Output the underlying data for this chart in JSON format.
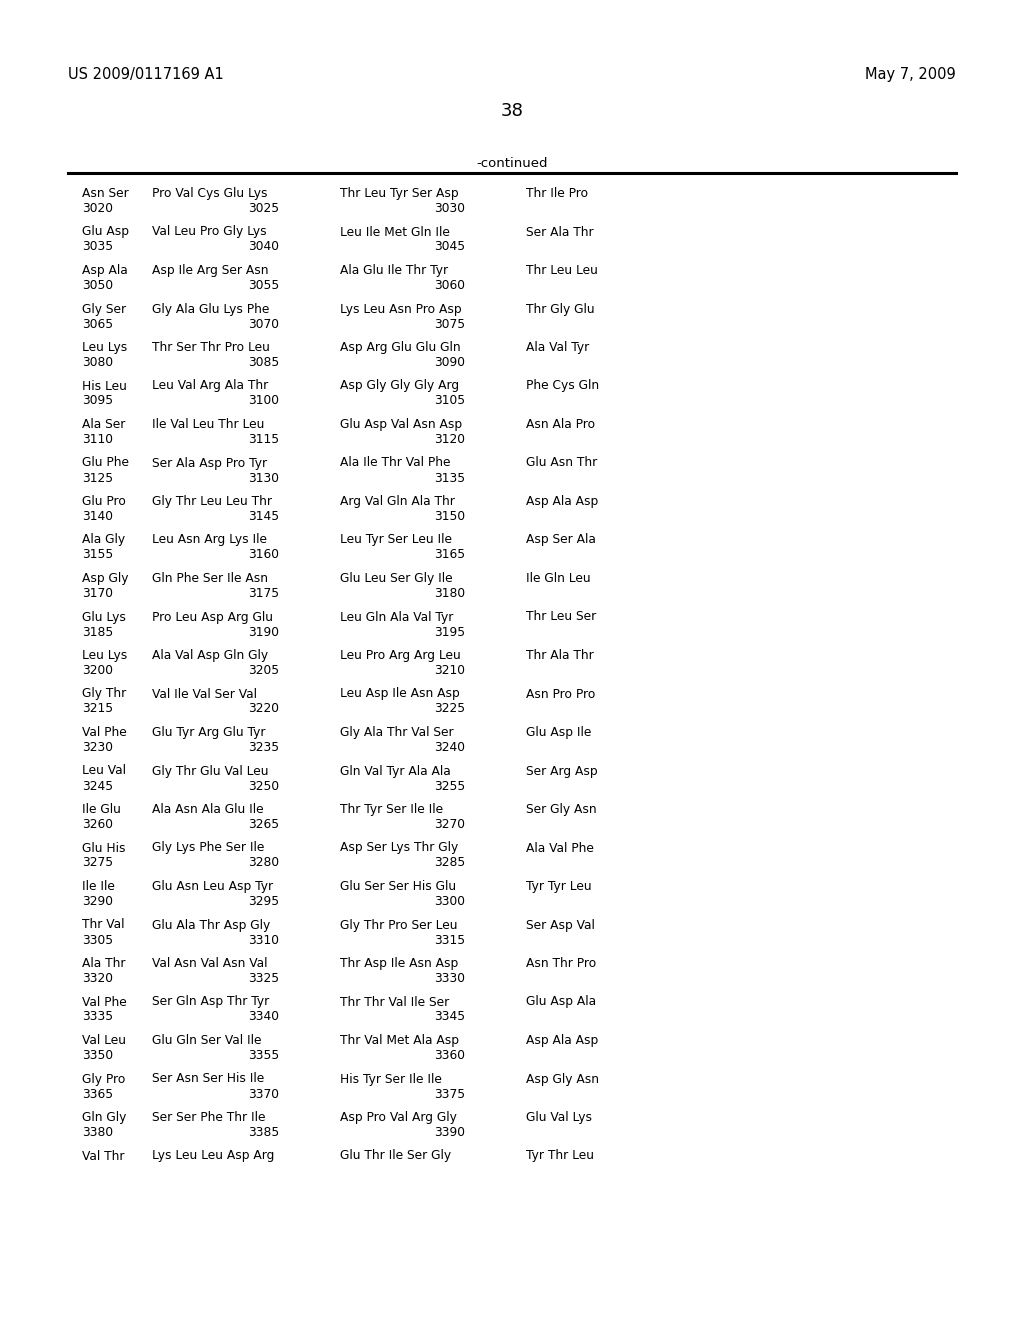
{
  "header_left": "US 2009/0117169 A1",
  "header_right": "May 7, 2009",
  "page_number": "38",
  "continued_label": "-continued",
  "background_color": "#ffffff",
  "text_color": "#000000",
  "sequence_lines": [
    [
      "Asn Ser",
      "Pro Val Cys Glu Lys",
      "Thr Leu Tyr Ser Asp",
      "Thr Ile Pro",
      "3020",
      "3025",
      "3030"
    ],
    [
      "Glu Asp",
      "Val Leu Pro Gly Lys",
      "Leu Ile Met Gln Ile",
      "Ser Ala Thr",
      "3035",
      "3040",
      "3045"
    ],
    [
      "Asp Ala",
      "Asp Ile Arg Ser Asn",
      "Ala Glu Ile Thr Tyr",
      "Thr Leu Leu",
      "3050",
      "3055",
      "3060"
    ],
    [
      "Gly Ser",
      "Gly Ala Glu Lys Phe",
      "Lys Leu Asn Pro Asp",
      "Thr Gly Glu",
      "3065",
      "3070",
      "3075"
    ],
    [
      "Leu Lys",
      "Thr Ser Thr Pro Leu",
      "Asp Arg Glu Glu Gln",
      "Ala Val Tyr",
      "3080",
      "3085",
      "3090"
    ],
    [
      "His Leu",
      "Leu Val Arg Ala Thr",
      "Asp Gly Gly Gly Arg",
      "Phe Cys Gln",
      "3095",
      "3100",
      "3105"
    ],
    [
      "Ala Ser",
      "Ile Val Leu Thr Leu",
      "Glu Asp Val Asn Asp",
      "Asn Ala Pro",
      "3110",
      "3115",
      "3120"
    ],
    [
      "Glu Phe",
      "Ser Ala Asp Pro Tyr",
      "Ala Ile Thr Val Phe",
      "Glu Asn Thr",
      "3125",
      "3130",
      "3135"
    ],
    [
      "Glu Pro",
      "Gly Thr Leu Leu Thr",
      "Arg Val Gln Ala Thr",
      "Asp Ala Asp",
      "3140",
      "3145",
      "3150"
    ],
    [
      "Ala Gly",
      "Leu Asn Arg Lys Ile",
      "Leu Tyr Ser Leu Ile",
      "Asp Ser Ala",
      "3155",
      "3160",
      "3165"
    ],
    [
      "Asp Gly",
      "Gln Phe Ser Ile Asn",
      "Glu Leu Ser Gly Ile",
      "Ile Gln Leu",
      "3170",
      "3175",
      "3180"
    ],
    [
      "Glu Lys",
      "Pro Leu Asp Arg Glu",
      "Leu Gln Ala Val Tyr",
      "Thr Leu Ser",
      "3185",
      "3190",
      "3195"
    ],
    [
      "Leu Lys",
      "Ala Val Asp Gln Gly",
      "Leu Pro Arg Arg Leu",
      "Thr Ala Thr",
      "3200",
      "3205",
      "3210"
    ],
    [
      "Gly Thr",
      "Val Ile Val Ser Val",
      "Leu Asp Ile Asn Asp",
      "Asn Pro Pro",
      "3215",
      "3220",
      "3225"
    ],
    [
      "Val Phe",
      "Glu Tyr Arg Glu Tyr",
      "Gly Ala Thr Val Ser",
      "Glu Asp Ile",
      "3230",
      "3235",
      "3240"
    ],
    [
      "Leu Val",
      "Gly Thr Glu Val Leu",
      "Gln Val Tyr Ala Ala",
      "Ser Arg Asp",
      "3245",
      "3250",
      "3255"
    ],
    [
      "Ile Glu",
      "Ala Asn Ala Glu Ile",
      "Thr Tyr Ser Ile Ile",
      "Ser Gly Asn",
      "3260",
      "3265",
      "3270"
    ],
    [
      "Glu His",
      "Gly Lys Phe Ser Ile",
      "Asp Ser Lys Thr Gly",
      "Ala Val Phe",
      "3275",
      "3280",
      "3285"
    ],
    [
      "Ile Ile",
      "Glu Asn Leu Asp Tyr",
      "Glu Ser Ser His Glu",
      "Tyr Tyr Leu",
      "3290",
      "3295",
      "3300"
    ],
    [
      "Thr Val",
      "Glu Ala Thr Asp Gly",
      "Gly Thr Pro Ser Leu",
      "Ser Asp Val",
      "3305",
      "3310",
      "3315"
    ],
    [
      "Ala Thr",
      "Val Asn Val Asn Val",
      "Thr Asp Ile Asn Asp",
      "Asn Thr Pro",
      "3320",
      "3325",
      "3330"
    ],
    [
      "Val Phe",
      "Ser Gln Asp Thr Tyr",
      "Thr Thr Val Ile Ser",
      "Glu Asp Ala",
      "3335",
      "3340",
      "3345"
    ],
    [
      "Val Leu",
      "Glu Gln Ser Val Ile",
      "Thr Val Met Ala Asp",
      "Asp Ala Asp",
      "3350",
      "3355",
      "3360"
    ],
    [
      "Gly Pro",
      "Ser Asn Ser His Ile",
      "His Tyr Ser Ile Ile",
      "Asp Gly Asn",
      "3365",
      "3370",
      "3375"
    ],
    [
      "Gln Gly",
      "Ser Ser Phe Thr Ile",
      "Asp Pro Val Arg Gly",
      "Glu Val Lys",
      "3380",
      "3385",
      "3390"
    ],
    [
      "Val Thr",
      "Lys Leu Leu Asp Arg",
      "Glu Thr Ile Ser Gly",
      "Tyr Thr Leu",
      "",
      "",
      ""
    ]
  ]
}
